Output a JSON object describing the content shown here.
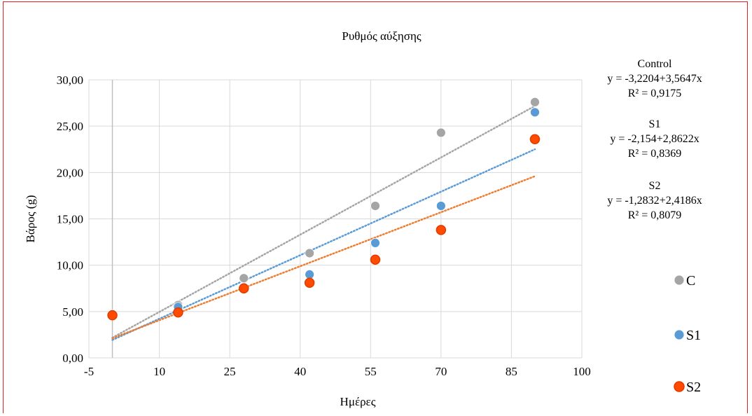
{
  "chart_data": {
    "type": "scatter",
    "title": "Ρυθμός αύξησης",
    "xlabel": "Ημέρες",
    "ylabel": "Βάρος (g)",
    "xlim": [
      -5,
      100
    ],
    "ylim": [
      0,
      30
    ],
    "x_ticks": [
      "-5",
      "10",
      "25",
      "40",
      "55",
      "70",
      "85",
      "100"
    ],
    "y_ticks": [
      "0,00",
      "5,00",
      "10,00",
      "15,00",
      "20,00",
      "25,00",
      "30,00"
    ],
    "grid": true,
    "legend_position": "right",
    "series": [
      {
        "name": "C",
        "color": "#a5a5a5",
        "x": [
          0,
          14,
          28,
          42,
          56,
          70,
          90
        ],
        "y": [
          4.7,
          5.7,
          8.6,
          11.3,
          16.4,
          24.3,
          27.6
        ],
        "trendline": {
          "label": "Control",
          "equation": "y = -3,2204+3,5647x",
          "r2": "R² = 0,9175"
        }
      },
      {
        "name": "S1",
        "color": "#5b9bd5",
        "x": [
          0,
          14,
          28,
          42,
          56,
          70,
          90
        ],
        "y": [
          4.7,
          5.5,
          7.6,
          9.0,
          12.4,
          16.4,
          26.5
        ],
        "trendline": {
          "label": "S1",
          "equation": "y = -2,154+2,8622x",
          "r2": "R² = 0,8369"
        }
      },
      {
        "name": "S2",
        "color": "#ff4a00",
        "x": [
          0,
          14,
          28,
          42,
          56,
          70,
          90
        ],
        "y": [
          4.6,
          4.9,
          7.5,
          8.1,
          10.6,
          13.8,
          23.6
        ],
        "trendline": {
          "label": "S2",
          "equation": "y = -1,2832+2,4186x",
          "r2": "R² = 0,8079"
        }
      }
    ]
  },
  "colors": {
    "frame_border": "#e0201d",
    "grid": "#d9d9d9",
    "trend_control": "#a5a5a5",
    "trend_s1": "#5b9bd5",
    "trend_s2": "#ed7d31"
  }
}
